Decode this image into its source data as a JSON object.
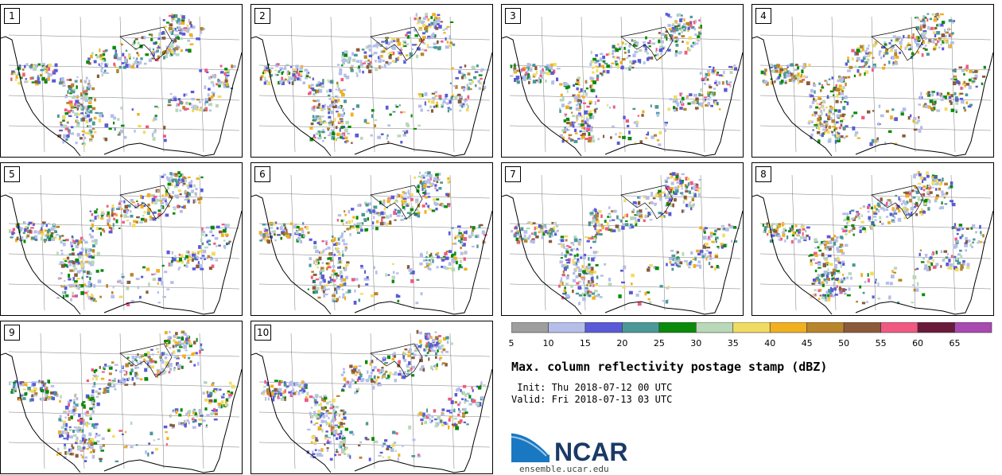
{
  "panels": [
    {
      "label": "1"
    },
    {
      "label": "2"
    },
    {
      "label": "3"
    },
    {
      "label": "4"
    },
    {
      "label": "5"
    },
    {
      "label": "6"
    },
    {
      "label": "7"
    },
    {
      "label": "8"
    },
    {
      "label": "9"
    },
    {
      "label": "10"
    }
  ],
  "colorbar": {
    "colors": [
      "#9e9e9e",
      "#b4bee8",
      "#5a5ad6",
      "#4a9898",
      "#0a8a0a",
      "#b8d8b8",
      "#f0dc64",
      "#f0b020",
      "#b8842c",
      "#8a5a3a",
      "#f05a82",
      "#6a1a3a",
      "#a84ab0"
    ],
    "ticks": [
      "5",
      "10",
      "15",
      "20",
      "25",
      "30",
      "35",
      "40",
      "45",
      "50",
      "55",
      "60",
      "65"
    ]
  },
  "title": "Max. column reflectivity postage stamp (dBZ)",
  "init_text": " Init: Thu 2018-07-12 00 UTC",
  "valid_text": "Valid: Fri 2018-07-13 03 UTC",
  "logo": {
    "name": "NCAR",
    "url": "ensemble.ucar.edu"
  }
}
